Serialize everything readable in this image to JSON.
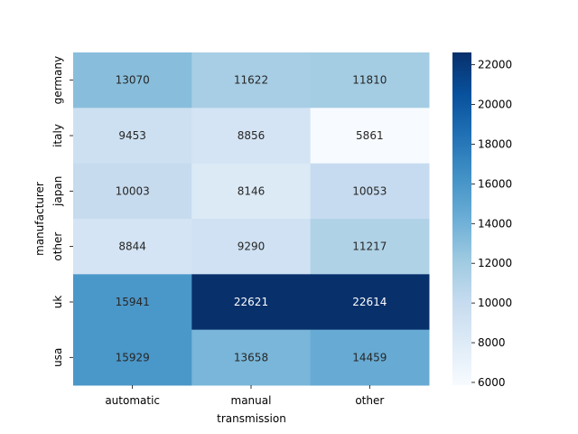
{
  "chart_data": {
    "type": "heatmap",
    "title": "",
    "xlabel": "transmission",
    "ylabel": "manufacturer",
    "x_categories": [
      "automatic",
      "manual",
      "other"
    ],
    "y_categories": [
      "germany",
      "italy",
      "japan",
      "other",
      "uk",
      "usa"
    ],
    "values": [
      [
        13070,
        11622,
        11810
      ],
      [
        9453,
        8856,
        5861
      ],
      [
        10003,
        8146,
        10053
      ],
      [
        8844,
        9290,
        11217
      ],
      [
        15941,
        22621,
        22614
      ],
      [
        15929,
        13658,
        14459
      ]
    ],
    "colorbar": {
      "colormap": "Blues",
      "range": [
        5861,
        22621
      ],
      "ticks": [
        6000,
        8000,
        10000,
        12000,
        14000,
        16000,
        18000,
        20000,
        22000
      ]
    }
  }
}
